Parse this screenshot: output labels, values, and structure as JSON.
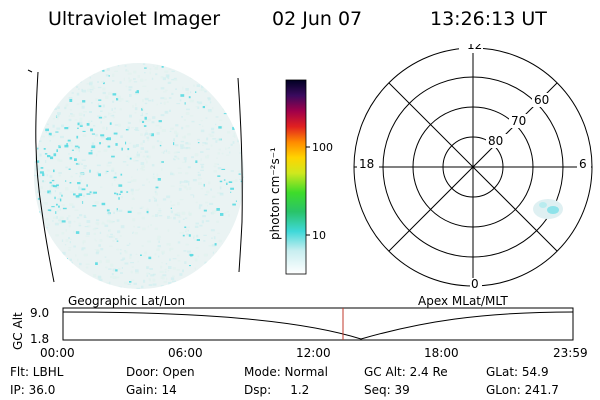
{
  "header": {
    "instrument": "Ultraviolet Imager",
    "date": "02 Jun 07",
    "time": "13:26:13 UT"
  },
  "colorbar": {
    "ticks": [
      "100",
      "10"
    ],
    "unit_label": "photon cm⁻²s⁻¹"
  },
  "polar_plot": {
    "mlt_labels": {
      "top": "12",
      "left": "18",
      "right": "6",
      "bottom": "0"
    },
    "lat_labels": [
      "60",
      "70",
      "80"
    ]
  },
  "timeline": {
    "ylabel": "GC Alt",
    "ytick_top": "9.0",
    "ytick_bottom": "1.8",
    "left_caption": "Geographic Lat/Lon",
    "right_caption": "Apex MLat/MLT",
    "xticks": [
      "00:00",
      "06:00",
      "12:00",
      "18:00",
      "23:59"
    ]
  },
  "status": {
    "flt": "Flt: LBHL",
    "door": "Door: Open",
    "mode": "Mode: Normal",
    "gc_alt": "GC Alt: 2.4 Re",
    "glat": "GLat:  54.9",
    "ip": "IP: 36.0",
    "gain": "Gain: 14",
    "dsp": "Dsp:     1.2",
    "seq": "Seq: 39",
    "glon": "GLon: 241.7"
  },
  "colors": {
    "image_base": "#e6f2f2",
    "emission": "#4fd8e0",
    "marker": "#c0392b"
  }
}
